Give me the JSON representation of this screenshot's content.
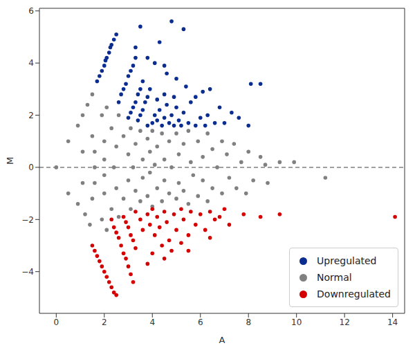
{
  "chart_data": {
    "type": "scatter",
    "x_label": "A",
    "y_label": "M",
    "xlim": [
      -0.7,
      14.5
    ],
    "ylim": [
      -5.6,
      6.1
    ],
    "xticks": [
      0,
      2,
      4,
      6,
      8,
      10,
      12,
      14
    ],
    "yticks": [
      {
        "value": -4,
        "label": "−4"
      },
      {
        "value": -2,
        "label": "−2"
      },
      0,
      2,
      4,
      6
    ],
    "grid": false,
    "legend": "lower right",
    "hline": 0,
    "series": [
      {
        "name": "Upregulated",
        "color": "#0b2d8f",
        "marker": "circle",
        "x": [
          1.7,
          1.8,
          1.9,
          2.0,
          2.05,
          2.1,
          2.2,
          2.25,
          2.3,
          2.4,
          2.5,
          2.6,
          2.7,
          2.8,
          2.9,
          3.0,
          3.1,
          3.2,
          3.3,
          3.0,
          3.1,
          3.2,
          3.3,
          3.4,
          3.5,
          3.6,
          3.4,
          3.5,
          3.6,
          3.7,
          3.8,
          3.9,
          3.8,
          4.0,
          4.1,
          4.2,
          4.3,
          4.4,
          4.5,
          4.6,
          4.7,
          4.8,
          4.9,
          5.0,
          5.1,
          5.2,
          5.3,
          5.5,
          5.6,
          5.8,
          6.0,
          6.2,
          6.3,
          6.6,
          4.2,
          4.5,
          4.9,
          5.4,
          5.0,
          4.6,
          3.5,
          4.8,
          5.3,
          4.3,
          3.3,
          3.8,
          4.1,
          4.5,
          8.1,
          8.5,
          7.3,
          7.6,
          8.0,
          6.4,
          6.1,
          5.8,
          7.0,
          6.8
        ],
        "values": [
          3.3,
          3.5,
          3.7,
          3.9,
          4.1,
          4.2,
          4.4,
          4.6,
          4.7,
          4.9,
          5.1,
          2.5,
          2.8,
          3.0,
          3.2,
          3.5,
          3.7,
          3.9,
          4.2,
          1.9,
          2.1,
          2.3,
          2.5,
          2.8,
          3.0,
          3.3,
          1.8,
          2.0,
          2.2,
          2.5,
          2.7,
          3.0,
          1.6,
          1.7,
          2.0,
          1.8,
          2.2,
          1.6,
          1.9,
          2.4,
          1.7,
          2.0,
          1.6,
          2.3,
          1.8,
          1.6,
          2.1,
          1.7,
          2.5,
          1.6,
          1.9,
          1.6,
          2.0,
          1.7,
          2.6,
          2.8,
          2.7,
          3.1,
          3.4,
          3.6,
          5.4,
          5.6,
          5.3,
          4.8,
          4.6,
          4.2,
          4.0,
          3.9,
          3.2,
          3.2,
          2.1,
          1.9,
          1.6,
          3.0,
          2.9,
          2.7,
          1.7,
          2.3
        ]
      },
      {
        "name": "Normal",
        "color": "#808080",
        "marker": "circle",
        "x": [
          0,
          0.5,
          0.5,
          0.9,
          0.9,
          1.1,
          1.3,
          1.5,
          1.1,
          1.1,
          1.2,
          1.4,
          1.5,
          1.5,
          1.6,
          1.6,
          1.6,
          1.9,
          1.9,
          2.0,
          2.0,
          2.1,
          2.1,
          2.3,
          2.3,
          2.0,
          2.0,
          2.4,
          2.5,
          2.5,
          2.6,
          2.6,
          2.8,
          2.8,
          3.0,
          3.0,
          3.1,
          3.1,
          3.2,
          3.3,
          3.3,
          3.5,
          3.5,
          3.6,
          3.6,
          3.8,
          3.8,
          3.9,
          3.9,
          4.0,
          4.0,
          4.1,
          4.2,
          4.2,
          4.4,
          4.4,
          4.5,
          4.5,
          4.7,
          4.7,
          4.8,
          5.0,
          5.0,
          5.1,
          5.1,
          5.3,
          5.3,
          5.5,
          5.5,
          5.6,
          5.7,
          5.9,
          5.9,
          6.1,
          6.1,
          6.3,
          6.3,
          6.5,
          6.5,
          6.7,
          6.9,
          6.9,
          7.1,
          7.2,
          7.4,
          7.5,
          7.7,
          7.9,
          8.0,
          8.2,
          8.5,
          8.7,
          8.8,
          9.3,
          9.9,
          11.2
        ],
        "values": [
          0,
          1.0,
          -1.0,
          1.6,
          -1.4,
          2.0,
          2.4,
          2.8,
          0.6,
          -0.6,
          -1.8,
          -2.2,
          1.2,
          -1.2,
          0,
          0.6,
          -0.6,
          2.0,
          -2.0,
          1.0,
          -1.0,
          2.3,
          -2.4,
          1.5,
          -1.6,
          0.3,
          -0.3,
          0,
          0.8,
          -0.8,
          2.0,
          -1.9,
          1.2,
          -1.2,
          0.5,
          -0.5,
          1.5,
          -1.6,
          0,
          0.9,
          -0.9,
          1.4,
          -1.3,
          0.3,
          -0.4,
          1.1,
          -1.1,
          0.6,
          -0.2,
          1.4,
          -1.5,
          0.1,
          0.8,
          -0.8,
          1.3,
          -1.3,
          0.3,
          -0.5,
          1.0,
          -1.0,
          0,
          1.3,
          -1.2,
          0.5,
          -0.6,
          0.9,
          -0.9,
          1.4,
          -1.4,
          0.2,
          -0.3,
          1.0,
          -1.1,
          0.4,
          -0.5,
          1.3,
          -1.3,
          0.7,
          -0.8,
          0,
          1.0,
          -1.0,
          0.5,
          -0.4,
          0.9,
          -0.8,
          0.2,
          -1.0,
          0.6,
          -0.5,
          0.4,
          0.1,
          -0.6,
          0.2,
          0.2,
          -0.4
        ]
      },
      {
        "name": "Downregulated",
        "color": "#d40000",
        "marker": "circle",
        "x": [
          1.5,
          1.6,
          1.7,
          1.8,
          1.9,
          2.0,
          2.1,
          2.2,
          2.3,
          2.4,
          2.5,
          2.3,
          2.4,
          2.5,
          2.6,
          2.7,
          2.8,
          2.9,
          3.0,
          3.1,
          3.2,
          2.8,
          2.9,
          3.0,
          3.1,
          3.2,
          3.3,
          3.3,
          3.5,
          3.6,
          3.8,
          3.9,
          4.0,
          4.1,
          4.2,
          4.3,
          4.5,
          4.6,
          4.7,
          4.9,
          5.0,
          5.2,
          5.3,
          5.5,
          5.6,
          5.8,
          6.0,
          6.2,
          6.4,
          6.6,
          6.8,
          7.0,
          7.2,
          4.4,
          4.8,
          14.1,
          9.3,
          8.5,
          7.8,
          5.5,
          3.8,
          4.5,
          5.2,
          6.4,
          4.0
        ],
        "values": [
          -3.0,
          -3.2,
          -3.4,
          -3.6,
          -3.8,
          -4.0,
          -4.2,
          -4.4,
          -4.6,
          -4.8,
          -4.9,
          -2.0,
          -2.3,
          -2.5,
          -2.7,
          -3.0,
          -3.3,
          -3.5,
          -3.8,
          -4.1,
          -4.4,
          -1.9,
          -2.1,
          -2.3,
          -2.6,
          -2.8,
          -3.1,
          -1.7,
          -2.0,
          -2.4,
          -1.8,
          -2.2,
          -1.6,
          -2.6,
          -1.9,
          -2.3,
          -1.7,
          -2.1,
          -2.8,
          -1.8,
          -2.4,
          -1.6,
          -2.0,
          -2.6,
          -1.7,
          -2.2,
          -1.8,
          -2.4,
          -1.7,
          -2.0,
          -1.9,
          -1.6,
          -2.2,
          -3.0,
          -3.2,
          -1.9,
          -1.8,
          -1.9,
          -1.8,
          -3.2,
          -3.7,
          -3.5,
          -2.9,
          -2.7,
          -3.3
        ]
      }
    ]
  }
}
